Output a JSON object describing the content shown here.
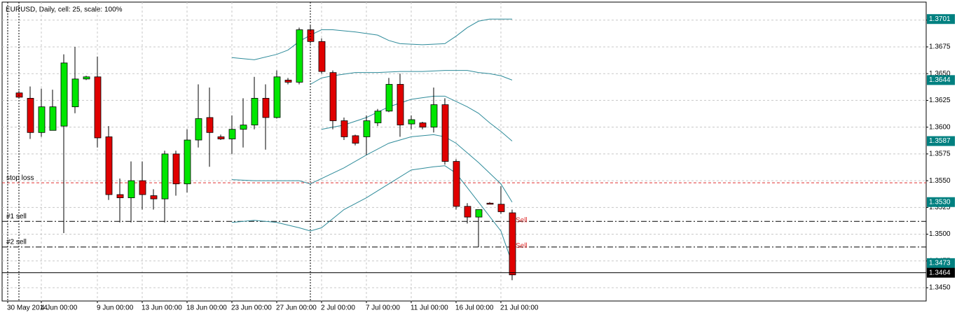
{
  "chart_data": {
    "type": "candlestick",
    "title": "EURUSD, Daily, cell: 25, scale: 100%",
    "xlim": [
      -0.5,
      81.94
    ],
    "ylim": [
      1.34376,
      1.37188
    ],
    "grid": true,
    "xticks": [
      {
        "value": 0,
        "label": "30 May 2014"
      },
      {
        "value": 3,
        "label": "4 Jun 00:00"
      },
      {
        "value": 8,
        "label": "9 Jun 00:00"
      },
      {
        "value": 12,
        "label": "13 Jun 00:00"
      },
      {
        "value": 16,
        "label": "18 Jun 00:00"
      },
      {
        "value": 20,
        "label": "23 Jun 00:00"
      },
      {
        "value": 24,
        "label": "27 Jun 00:00"
      },
      {
        "value": 28,
        "label": "2 Jul 00:00"
      },
      {
        "value": 32,
        "label": "7 Jul 00:00"
      },
      {
        "value": 36,
        "label": "11 Jul 00:00"
      },
      {
        "value": 40,
        "label": "16 Jul 00:00"
      },
      {
        "value": 44,
        "label": "21 Jul 00:00"
      }
    ],
    "yticks": [
      {
        "value": 1.345,
        "label": "1.3450"
      },
      1.3475,
      {
        "value": 1.35,
        "label": "1.3500"
      },
      1.3525,
      {
        "value": 1.355,
        "label": "1.3550"
      },
      1.3575,
      {
        "value": 1.36,
        "label": "1.3600"
      },
      1.3625,
      {
        "value": 1.365,
        "label": "1.3650"
      },
      1.3675,
      {
        "value": 1.37,
        "label": "1.3700"
      }
    ],
    "up_color": "#00e600",
    "down_color": "#e00000",
    "candles": {
      "x": [
        1,
        2,
        3,
        4,
        5,
        6,
        7,
        8,
        9,
        10,
        11,
        12,
        13,
        14,
        15,
        16,
        17,
        18,
        19,
        20,
        21,
        22,
        23,
        24,
        25,
        26,
        27,
        28,
        29,
        30,
        31,
        32,
        33,
        34,
        35,
        36,
        37,
        38,
        39,
        40,
        41,
        42,
        43,
        44,
        45
      ],
      "open": [
        1.3632,
        1.3627,
        1.3595,
        1.3597,
        1.3601,
        1.3619,
        1.3645,
        1.3647,
        1.3591,
        1.3537,
        1.3534,
        1.355,
        1.3536,
        1.3533,
        1.3575,
        1.3547,
        1.3588,
        1.3609,
        1.3591,
        1.3589,
        1.3598,
        1.3602,
        1.3627,
        1.3609,
        1.3644,
        1.3642,
        1.3691,
        1.368,
        1.3651,
        1.3606,
        1.3592,
        1.3591,
        1.3604,
        1.3615,
        1.364,
        1.3603,
        1.3604,
        1.36,
        1.3621,
        1.3568,
        1.3526,
        1.3516,
        1.3529,
        1.3528,
        1.352
      ],
      "high": [
        1.3634,
        1.3638,
        1.3636,
        1.3635,
        1.3668,
        1.3675,
        1.3648,
        1.3666,
        1.3601,
        1.3552,
        1.3568,
        1.3568,
        1.3542,
        1.3578,
        1.3578,
        1.3598,
        1.364,
        1.3637,
        1.3593,
        1.3611,
        1.3627,
        1.3647,
        1.364,
        1.3653,
        1.3646,
        1.3693,
        1.3695,
        1.3683,
        1.3653,
        1.3609,
        1.3593,
        1.3611,
        1.3617,
        1.3646,
        1.365,
        1.3611,
        1.3605,
        1.3637,
        1.3627,
        1.357,
        1.3529,
        1.3523,
        1.353,
        1.3545,
        1.3523
      ],
      "low": [
        1.3627,
        1.3589,
        1.3591,
        1.3597,
        1.3501,
        1.3613,
        1.3644,
        1.3581,
        1.3532,
        1.3511,
        1.3511,
        1.3523,
        1.3523,
        1.3511,
        1.3536,
        1.3539,
        1.3581,
        1.3563,
        1.3588,
        1.3575,
        1.3581,
        1.3598,
        1.3579,
        1.3608,
        1.364,
        1.364,
        1.3678,
        1.365,
        1.3598,
        1.3588,
        1.3583,
        1.3574,
        1.3601,
        1.3614,
        1.3591,
        1.3598,
        1.3598,
        1.3595,
        1.3565,
        1.3523,
        1.351,
        1.3488,
        1.3528,
        1.3519,
        1.3457
      ],
      "close": [
        1.3628,
        1.3595,
        1.3619,
        1.3619,
        1.366,
        1.3645,
        1.3647,
        1.359,
        1.3537,
        1.3534,
        1.355,
        1.3537,
        1.3533,
        1.3575,
        1.3547,
        1.3588,
        1.3608,
        1.3595,
        1.3589,
        1.3598,
        1.3602,
        1.3627,
        1.3609,
        1.3647,
        1.3642,
        1.3691,
        1.368,
        1.3652,
        1.3606,
        1.3591,
        1.3585,
        1.3606,
        1.3615,
        1.364,
        1.3602,
        1.3607,
        1.36,
        1.3621,
        1.3568,
        1.3526,
        1.3516,
        1.3523,
        1.3528,
        1.3521,
        1.3462
      ]
    },
    "band_color": "#2e8b9a",
    "bands": [
      {
        "x": [
          20,
          22,
          24,
          25,
          26,
          27,
          28,
          29,
          31,
          33,
          34,
          35,
          37,
          39,
          40,
          41,
          42,
          43,
          44,
          45
        ],
        "values": [
          1.3665,
          1.3663,
          1.3668,
          1.3672,
          1.368,
          1.3686,
          1.3691,
          1.3691,
          1.3689,
          1.3686,
          1.3681,
          1.3678,
          1.3677,
          1.3678,
          1.3685,
          1.3693,
          1.3699,
          1.3701,
          1.3701,
          1.3701
        ]
      },
      {
        "x": [
          27,
          28,
          29,
          31,
          33,
          35,
          37,
          39,
          41,
          42,
          43,
          44,
          45
        ],
        "values": [
          1.364,
          1.3646,
          1.3648,
          1.3651,
          1.3651,
          1.3652,
          1.3652,
          1.3653,
          1.3653,
          1.3651,
          1.365,
          1.3648,
          1.3644
        ]
      },
      {
        "x": [
          28,
          30,
          32,
          34,
          36,
          38,
          39,
          40,
          41,
          42,
          43,
          44,
          45
        ],
        "values": [
          1.3598,
          1.3602,
          1.3609,
          1.3619,
          1.3626,
          1.3629,
          1.3629,
          1.3624,
          1.3619,
          1.3613,
          1.3604,
          1.3596,
          1.3587
        ]
      },
      {
        "x": [
          20,
          22,
          26,
          27,
          28,
          30,
          32,
          34,
          36,
          38,
          39,
          40,
          42,
          44,
          45
        ],
        "values": [
          1.3551,
          1.355,
          1.355,
          1.3547,
          1.3552,
          1.3562,
          1.3574,
          1.3585,
          1.3591,
          1.3593,
          1.3591,
          1.3585,
          1.3567,
          1.3547,
          1.353
        ]
      },
      {
        "x": [
          20,
          22,
          24,
          26,
          27,
          28,
          30,
          32,
          34,
          36,
          38,
          39,
          40,
          42,
          44,
          45
        ],
        "values": [
          1.3511,
          1.3513,
          1.3511,
          1.3506,
          1.3503,
          1.3506,
          1.3523,
          1.3534,
          1.3547,
          1.356,
          1.3563,
          1.3564,
          1.3557,
          1.353,
          1.3503,
          1.3473
        ]
      }
    ],
    "levels": [
      {
        "name": "stop loss",
        "value": 1.3548,
        "color": "#e03030",
        "style": "dash"
      },
      {
        "name": "#1 sell",
        "value": 1.3512,
        "color": "#000000",
        "style": "dashdot"
      },
      {
        "name": "#2 sell",
        "value": 1.3488,
        "color": "#000000",
        "style": "dashdot"
      }
    ],
    "annotations": [
      {
        "text": "Sell",
        "x": 45,
        "y": 1.3513
      },
      {
        "text": "Sell",
        "x": 45,
        "y": 1.3489
      }
    ],
    "price_labels": [
      {
        "value": 1.3701,
        "color": "#008080"
      },
      {
        "value": 1.3644,
        "color": "#008080"
      },
      {
        "value": 1.3587,
        "color": "#008080"
      },
      {
        "value": 1.353,
        "label": "1.3530",
        "color": "#008080"
      },
      {
        "value": 1.3473,
        "color": "#008080"
      },
      {
        "value": 1.3464,
        "color": "#000000"
      }
    ]
  }
}
